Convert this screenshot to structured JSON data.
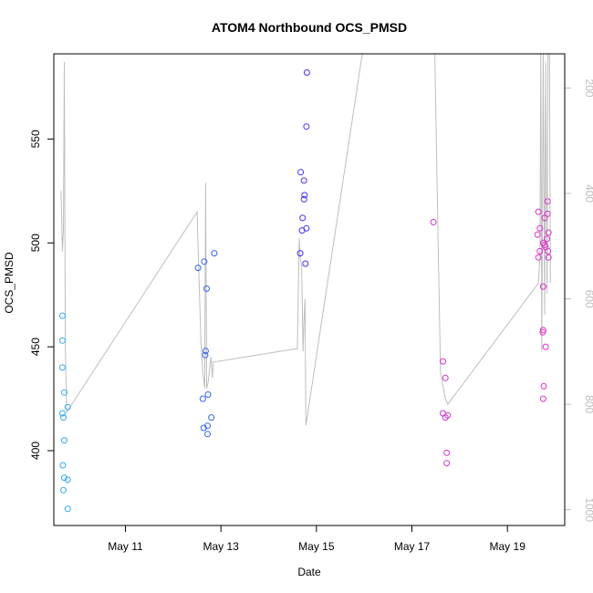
{
  "chart_data": {
    "type": "scatter",
    "title": "ATOM4 Northbound OCS_PMSD",
    "xlabel": "Date",
    "ylabel": "OCS_PMSD",
    "x_unit": "days (May date, fractional)",
    "xlim": [
      9.5,
      20.2
    ],
    "ylim": [
      364,
      591
    ],
    "x_ticks": [
      {
        "value": 11,
        "label": "May 11"
      },
      {
        "value": 13,
        "label": "May 13"
      },
      {
        "value": 15,
        "label": "May 15"
      },
      {
        "value": 17,
        "label": "May 17"
      },
      {
        "value": 19,
        "label": "May 19"
      }
    ],
    "y_ticks": [
      400,
      450,
      500,
      550
    ],
    "secondary_axis": {
      "side": "right",
      "color": "#bebebe",
      "reversed": true,
      "ylim": [
        1030,
        135
      ],
      "ticks": [
        200,
        400,
        600,
        800,
        1000
      ]
    },
    "series": [
      {
        "name": "OCS_PMSD points",
        "kind": "points",
        "points": [
          {
            "x": 9.68,
            "y": 465,
            "color": "#33aaee"
          },
          {
            "x": 9.68,
            "y": 453,
            "color": "#33aaee"
          },
          {
            "x": 9.68,
            "y": 440,
            "color": "#33aaee"
          },
          {
            "x": 9.68,
            "y": 418,
            "color": "#33aaee"
          },
          {
            "x": 9.7,
            "y": 416,
            "color": "#33aaee"
          },
          {
            "x": 9.72,
            "y": 428,
            "color": "#33aaee"
          },
          {
            "x": 9.79,
            "y": 421,
            "color": "#33aaee"
          },
          {
            "x": 9.72,
            "y": 405,
            "color": "#33aaee"
          },
          {
            "x": 9.69,
            "y": 393,
            "color": "#33aaee"
          },
          {
            "x": 9.72,
            "y": 387,
            "color": "#33aaee"
          },
          {
            "x": 9.79,
            "y": 386,
            "color": "#33aaee"
          },
          {
            "x": 9.7,
            "y": 381,
            "color": "#33aaee"
          },
          {
            "x": 9.79,
            "y": 372,
            "color": "#33aaee"
          },
          {
            "x": 12.52,
            "y": 488,
            "color": "#3366ee"
          },
          {
            "x": 12.65,
            "y": 491,
            "color": "#3366ee"
          },
          {
            "x": 12.7,
            "y": 478,
            "color": "#3366ee"
          },
          {
            "x": 12.86,
            "y": 495,
            "color": "#3366ee"
          },
          {
            "x": 12.68,
            "y": 448,
            "color": "#3366ee"
          },
          {
            "x": 12.67,
            "y": 446,
            "color": "#3366ee"
          },
          {
            "x": 12.73,
            "y": 427,
            "color": "#3366ee"
          },
          {
            "x": 12.62,
            "y": 425,
            "color": "#3366ee"
          },
          {
            "x": 12.8,
            "y": 416,
            "color": "#3366ee"
          },
          {
            "x": 12.72,
            "y": 412,
            "color": "#3366ee"
          },
          {
            "x": 12.64,
            "y": 411,
            "color": "#3366ee"
          },
          {
            "x": 12.72,
            "y": 408,
            "color": "#3366ee"
          },
          {
            "x": 14.8,
            "y": 582,
            "color": "#4433ee"
          },
          {
            "x": 14.79,
            "y": 556,
            "color": "#4433ee"
          },
          {
            "x": 14.67,
            "y": 534,
            "color": "#4433ee"
          },
          {
            "x": 14.74,
            "y": 530,
            "color": "#4433ee"
          },
          {
            "x": 14.75,
            "y": 523,
            "color": "#4433ee"
          },
          {
            "x": 14.74,
            "y": 521,
            "color": "#4433ee"
          },
          {
            "x": 14.71,
            "y": 512,
            "color": "#4433ee"
          },
          {
            "x": 14.79,
            "y": 507,
            "color": "#4433ee"
          },
          {
            "x": 14.7,
            "y": 506,
            "color": "#4433ee"
          },
          {
            "x": 14.66,
            "y": 495,
            "color": "#4433ee"
          },
          {
            "x": 14.77,
            "y": 490,
            "color": "#4433ee"
          },
          {
            "x": 17.45,
            "y": 510,
            "color": "#cc33cc"
          },
          {
            "x": 17.65,
            "y": 443,
            "color": "#cc33cc"
          },
          {
            "x": 17.7,
            "y": 435,
            "color": "#cc33cc"
          },
          {
            "x": 17.65,
            "y": 418,
            "color": "#cc33cc"
          },
          {
            "x": 17.7,
            "y": 416,
            "color": "#cc33cc"
          },
          {
            "x": 17.75,
            "y": 417,
            "color": "#cc33cc"
          },
          {
            "x": 17.73,
            "y": 399,
            "color": "#cc33cc"
          },
          {
            "x": 17.73,
            "y": 394,
            "color": "#cc33cc"
          },
          {
            "x": 19.65,
            "y": 515,
            "color": "#dd33cc"
          },
          {
            "x": 19.68,
            "y": 507,
            "color": "#dd33cc"
          },
          {
            "x": 19.63,
            "y": 504,
            "color": "#dd33cc"
          },
          {
            "x": 19.68,
            "y": 496,
            "color": "#dd33cc"
          },
          {
            "x": 19.65,
            "y": 493,
            "color": "#dd33cc"
          },
          {
            "x": 19.78,
            "y": 512,
            "color": "#dd33cc"
          },
          {
            "x": 19.84,
            "y": 520,
            "color": "#dd33cc"
          },
          {
            "x": 19.84,
            "y": 514,
            "color": "#dd33cc"
          },
          {
            "x": 19.86,
            "y": 505,
            "color": "#dd33cc"
          },
          {
            "x": 19.83,
            "y": 502,
            "color": "#dd33cc"
          },
          {
            "x": 19.75,
            "y": 500,
            "color": "#dd33cc"
          },
          {
            "x": 19.8,
            "y": 498,
            "color": "#dd33cc"
          },
          {
            "x": 19.85,
            "y": 496,
            "color": "#dd33cc"
          },
          {
            "x": 19.78,
            "y": 499,
            "color": "#dd33cc"
          },
          {
            "x": 19.86,
            "y": 493,
            "color": "#dd33cc"
          },
          {
            "x": 19.75,
            "y": 479,
            "color": "#dd33cc"
          },
          {
            "x": 19.75,
            "y": 458,
            "color": "#dd33cc"
          },
          {
            "x": 19.74,
            "y": 457,
            "color": "#dd33cc"
          },
          {
            "x": 19.8,
            "y": 450,
            "color": "#dd33cc"
          },
          {
            "x": 19.76,
            "y": 431,
            "color": "#dd33cc"
          },
          {
            "x": 19.75,
            "y": 425,
            "color": "#dd33cc"
          }
        ]
      },
      {
        "name": "secondary line",
        "kind": "line",
        "axis": "right",
        "color": "#bebebe",
        "points": [
          [
            9.65,
            395
          ],
          [
            9.68,
            510
          ],
          [
            9.7,
            470
          ],
          [
            9.72,
            150
          ],
          [
            9.74,
            690
          ],
          [
            9.77,
            815
          ],
          [
            12.5,
            435
          ],
          [
            12.58,
            680
          ],
          [
            12.62,
            740
          ],
          [
            12.66,
            770
          ],
          [
            12.68,
            380
          ],
          [
            12.7,
            770
          ],
          [
            12.73,
            760
          ],
          [
            12.79,
            710
          ],
          [
            12.82,
            750
          ],
          [
            12.84,
            720
          ],
          [
            14.55,
            695
          ],
          [
            14.6,
            695
          ],
          [
            14.64,
            485
          ],
          [
            14.66,
            520
          ],
          [
            14.69,
            540
          ],
          [
            14.72,
            700
          ],
          [
            14.74,
            640
          ],
          [
            14.76,
            600
          ],
          [
            14.78,
            840
          ],
          [
            15.96,
            135
          ],
          [
            17.48,
            135
          ],
          [
            17.55,
            500
          ],
          [
            17.6,
            740
          ],
          [
            17.65,
            765
          ],
          [
            17.7,
            790
          ],
          [
            17.75,
            800
          ],
          [
            19.65,
            570
          ],
          [
            19.68,
            520
          ],
          [
            19.7,
            135
          ],
          [
            19.72,
            700
          ],
          [
            19.75,
            135
          ],
          [
            19.78,
            630
          ],
          [
            19.8,
            150
          ],
          [
            19.83,
            590
          ],
          [
            19.85,
            135
          ],
          [
            19.88,
            135
          ],
          [
            19.9,
            570
          ]
        ]
      }
    ]
  }
}
